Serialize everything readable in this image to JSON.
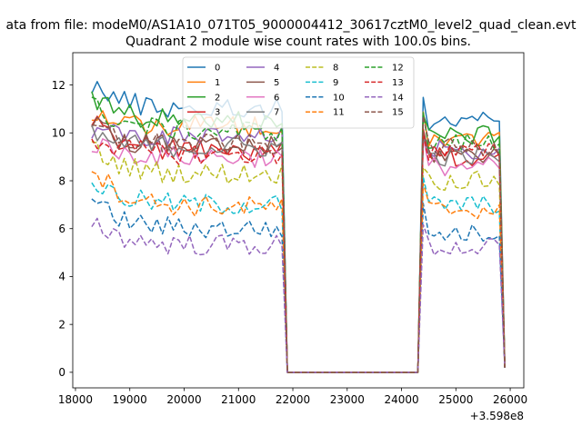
{
  "suptitle": "ata from file: modeM0/AS1A10_071T05_9000004412_30617cztM0_level2_quad_clean.evt",
  "chart_data": {
    "type": "line",
    "title": "Quadrant 2 module wise count rates with 100.0s bins.",
    "xlabel": "",
    "ylabel": "",
    "x_offset_label": "+3.598e8",
    "xlim": [
      17950,
      26250
    ],
    "ylim": [
      -0.65,
      13.35
    ],
    "x_ticks": [
      18000,
      19000,
      20000,
      21000,
      22000,
      23000,
      24000,
      25000,
      26000
    ],
    "y_ticks": [
      0,
      2,
      4,
      6,
      8,
      10,
      12
    ],
    "grid": false,
    "legend": {
      "placement": "upper-center",
      "columns": 4
    },
    "segments": [
      {
        "x_start": 18300,
        "x_end": 21800,
        "step": 100
      },
      {
        "x_start": 24400,
        "x_end": 25800,
        "step": 100
      }
    ],
    "gap": {
      "x_start": 21900,
      "x_end": 24300,
      "value": 0
    },
    "end_point": {
      "x": 25900
    },
    "series": [
      {
        "name": "0",
        "color": "#1f77b4",
        "dash": "solid",
        "level": 11.0,
        "start": 12.1,
        "second_level": 10.5,
        "end_value": 0.3
      },
      {
        "name": "1",
        "color": "#ff7f0e",
        "dash": "solid",
        "level": 10.3,
        "start": 10.9,
        "second_level": 9.8,
        "end_value": 0.3
      },
      {
        "name": "2",
        "color": "#2ca02c",
        "dash": "solid",
        "level": 10.5,
        "start": 11.6,
        "second_level": 9.9,
        "end_value": 0.3
      },
      {
        "name": "3",
        "color": "#d62728",
        "dash": "solid",
        "level": 9.2,
        "start": 10.7,
        "second_level": 9.0,
        "end_value": 0.2
      },
      {
        "name": "4",
        "color": "#9467bd",
        "dash": "solid",
        "level": 9.8,
        "start": 10.2,
        "second_level": 9.3,
        "end_value": 0.2
      },
      {
        "name": "5",
        "color": "#8c564b",
        "dash": "solid",
        "level": 9.4,
        "start": 10.4,
        "second_level": 9.1,
        "end_value": 0.2
      },
      {
        "name": "6",
        "color": "#e377c2",
        "dash": "solid",
        "level": 9.0,
        "start": 9.6,
        "second_level": 8.6,
        "end_value": 0.2
      },
      {
        "name": "7",
        "color": "#7f7f7f",
        "dash": "solid",
        "level": 9.4,
        "start": 9.9,
        "second_level": 9.0,
        "end_value": 0.2
      },
      {
        "name": "8",
        "color": "#bcbd22",
        "dash": "dashed",
        "level": 8.3,
        "start": 9.4,
        "second_level": 8.0,
        "end_value": 0.2
      },
      {
        "name": "9",
        "color": "#17becf",
        "dash": "dashed",
        "level": 7.0,
        "start": 8.0,
        "second_level": 7.0,
        "end_value": 0.2
      },
      {
        "name": "10",
        "color": "#1f77b4",
        "dash": "dashed",
        "level": 6.0,
        "start": 7.2,
        "second_level": 5.8,
        "end_value": 0.2
      },
      {
        "name": "11",
        "color": "#ff7f0e",
        "dash": "dashed",
        "level": 6.9,
        "start": 8.7,
        "second_level": 6.8,
        "end_value": 0.2
      },
      {
        "name": "12",
        "color": "#2ca02c",
        "dash": "dashed",
        "level": 10.1,
        "start": 11.2,
        "second_level": 9.6,
        "end_value": 0.2
      },
      {
        "name": "13",
        "color": "#d62728",
        "dash": "dashed",
        "level": 9.1,
        "start": 9.9,
        "second_level": 9.2,
        "end_value": 0.2
      },
      {
        "name": "14",
        "color": "#9467bd",
        "dash": "dashed",
        "level": 5.3,
        "start": 6.4,
        "second_level": 5.2,
        "end_value": 0.2
      },
      {
        "name": "15",
        "color": "#8c564b",
        "dash": "dashed",
        "level": 9.5,
        "start": 10.3,
        "second_level": 9.4,
        "end_value": 0.2
      }
    ]
  }
}
